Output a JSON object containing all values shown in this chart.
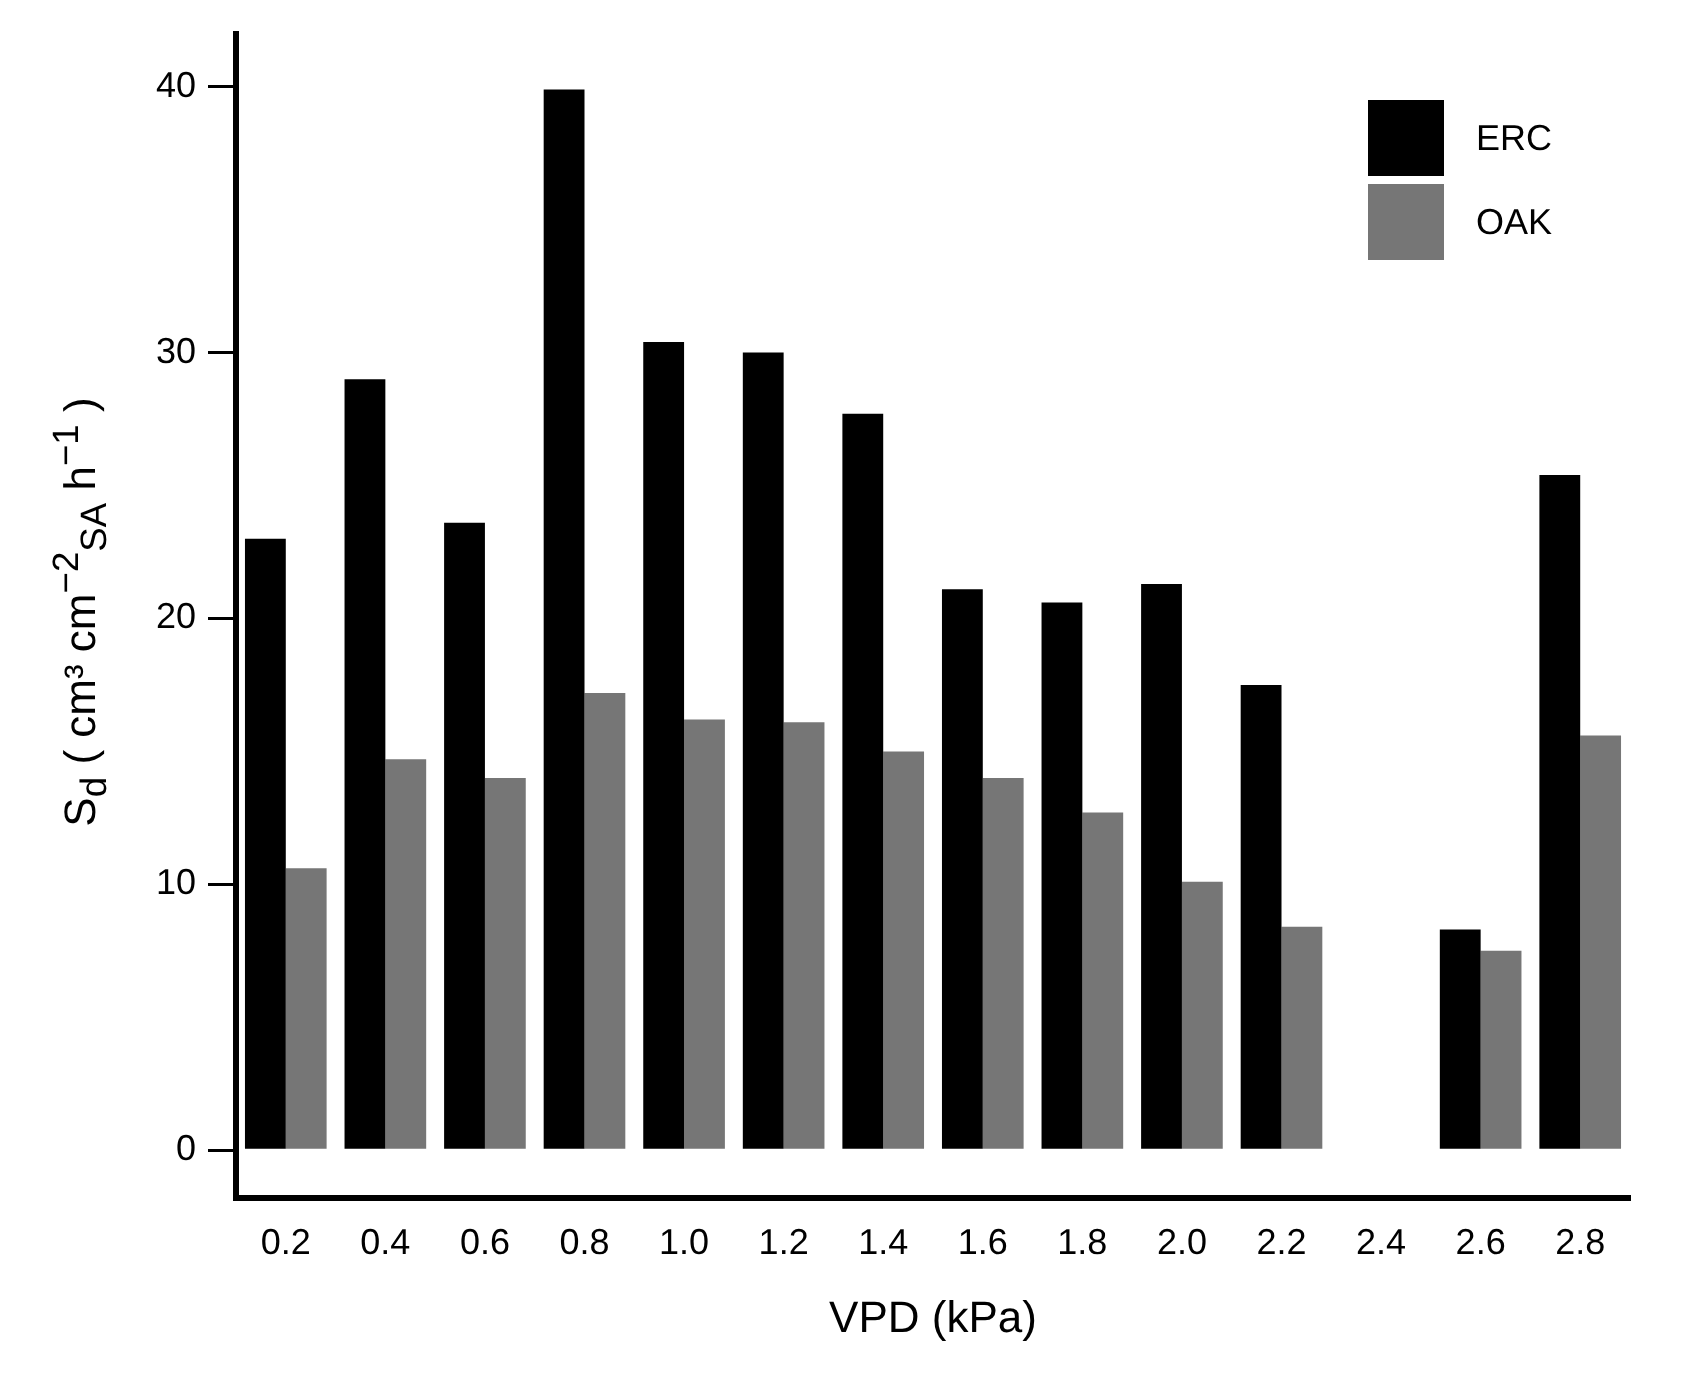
{
  "chart_data": {
    "type": "bar",
    "xlabel": "VPD (kPa)",
    "ylabel": "S$_{d}$ ( cm³ cm$^{−2}$$_{SA}$ h$^{−1}$ )",
    "categories": [
      "0.2",
      "0.4",
      "0.6",
      "0.8",
      "1.0",
      "1.2",
      "1.4",
      "1.6",
      "1.8",
      "2.0",
      "2.2",
      "2.4",
      "2.6",
      "2.8"
    ],
    "series": [
      {
        "name": "ERC",
        "color": "#000000",
        "values": [
          23.0,
          29.0,
          23.6,
          39.9,
          30.4,
          30.0,
          27.7,
          21.1,
          20.6,
          21.3,
          17.5,
          null,
          8.3,
          25.4
        ]
      },
      {
        "name": "OAK",
        "color": "#767676",
        "values": [
          10.6,
          14.7,
          14.0,
          17.2,
          16.2,
          16.1,
          15.0,
          14.0,
          12.7,
          10.1,
          8.4,
          null,
          7.5,
          15.6
        ]
      }
    ],
    "ylim": [
      -1.8,
      42
    ],
    "yticks": [
      0,
      10,
      20,
      30,
      40
    ],
    "grid": false,
    "legend": "top right"
  }
}
